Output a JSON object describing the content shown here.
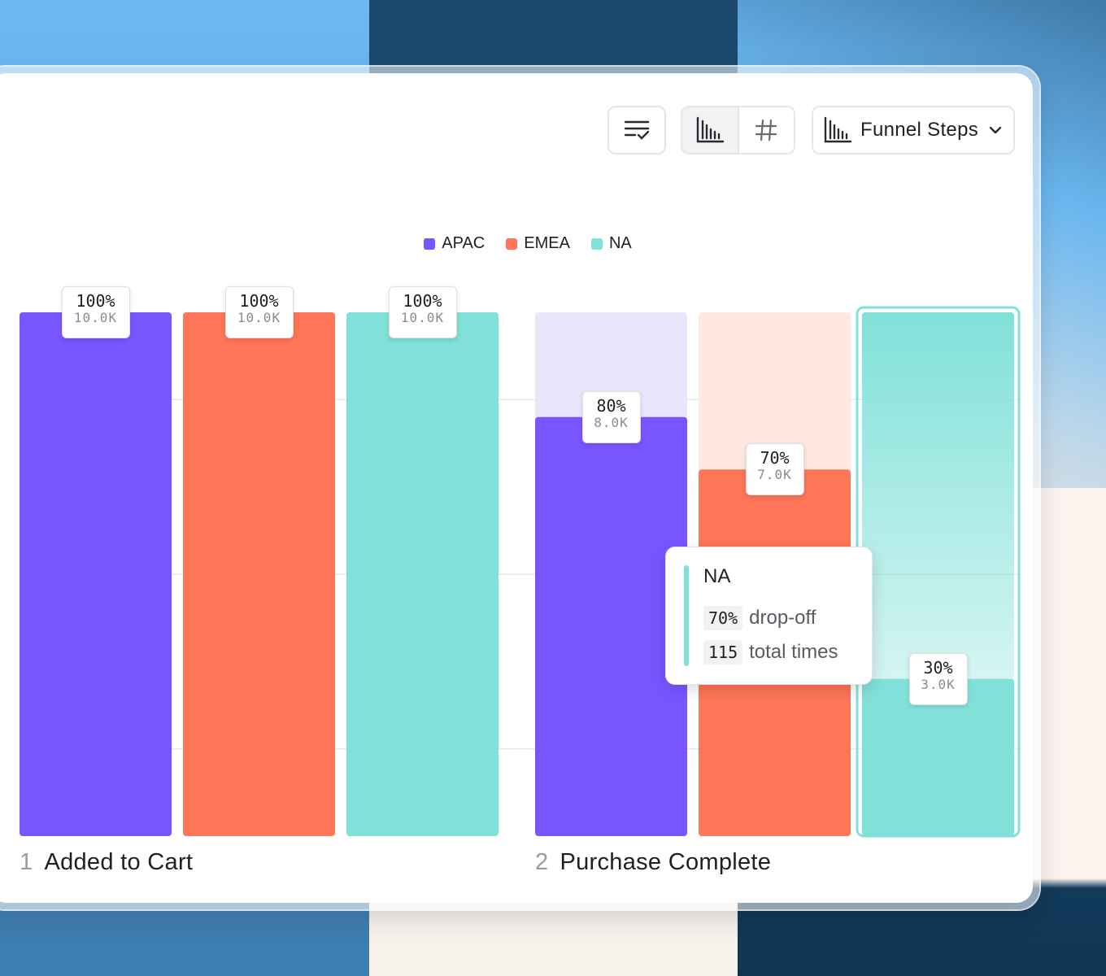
{
  "toolbar": {
    "sort_icon": "sort-lines-check-icon",
    "view_toggle": [
      {
        "icon": "bar-chart-icon",
        "active": true
      },
      {
        "icon": "hash-icon",
        "active": false
      }
    ],
    "dropdown": {
      "icon": "bar-chart-icon",
      "label": "Funnel Steps",
      "chevron": "chevron-down-icon"
    }
  },
  "colors": {
    "APAC": "#7856ff",
    "EMEA": "#ff7557",
    "NA": "#80e1d9"
  },
  "chart_data": {
    "type": "bar",
    "categories": [
      "Added to Cart",
      "Purchase Complete"
    ],
    "step_numbers": [
      "1",
      "2"
    ],
    "series": [
      {
        "name": "APAC",
        "values": [
          100,
          80
        ],
        "counts": [
          "10.0K",
          "8.0K"
        ]
      },
      {
        "name": "EMEA",
        "values": [
          100,
          70
        ],
        "counts": [
          "10.0K",
          "7.0K"
        ]
      },
      {
        "name": "NA",
        "values": [
          100,
          30
        ],
        "counts": [
          "10.0K",
          "3.0K"
        ]
      }
    ],
    "ylim": [
      0,
      100
    ],
    "legend": "top-center",
    "grid": true,
    "value_labels": [
      "100%",
      "100%",
      "100%",
      "80%",
      "70%",
      "30%"
    ]
  },
  "tooltip": {
    "title": "NA",
    "rows": [
      {
        "value": "70%",
        "text": "drop-off"
      },
      {
        "value": "115",
        "text": "total times"
      }
    ]
  }
}
